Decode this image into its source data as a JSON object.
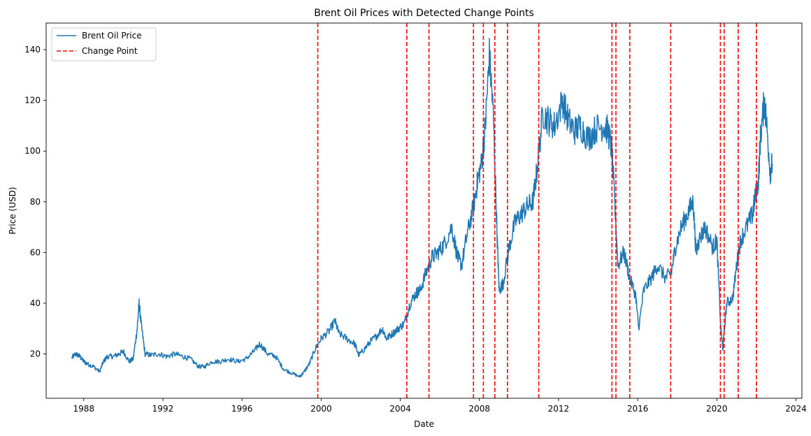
{
  "chart_data": {
    "type": "line",
    "title": "Brent Oil Prices with Detected Change Points",
    "xlabel": "Date",
    "ylabel": "Price (USD)",
    "xlim": [
      1986.1,
      2024.3
    ],
    "ylim": [
      2.5,
      150.5
    ],
    "xticks": [
      1988,
      1992,
      1996,
      2000,
      2004,
      2008,
      2012,
      2016,
      2020,
      2024
    ],
    "yticks": [
      20,
      40,
      60,
      80,
      100,
      120,
      140
    ],
    "grid": false,
    "legend_position": "top-left",
    "series": [
      {
        "name": "Brent Oil Price",
        "color": "#1f77b4",
        "x": [
          1987.4,
          1987.6,
          1987.8,
          1988.0,
          1988.2,
          1988.5,
          1988.8,
          1989.0,
          1989.2,
          1989.5,
          1989.8,
          1990.0,
          1990.3,
          1990.5,
          1990.7,
          1990.8,
          1990.9,
          1991.1,
          1991.4,
          1991.8,
          1992.2,
          1992.6,
          1993.0,
          1993.4,
          1993.8,
          1994.1,
          1994.5,
          1994.9,
          1995.3,
          1995.8,
          1996.2,
          1996.6,
          1996.9,
          1997.3,
          1997.7,
          1998.1,
          1998.5,
          1998.9,
          1999.1,
          1999.4,
          1999.7,
          2000.0,
          2000.4,
          2000.7,
          2000.9,
          2001.3,
          2001.7,
          2001.9,
          2002.2,
          2002.5,
          2002.8,
          2003.1,
          2003.3,
          2003.6,
          2003.9,
          2004.2,
          2004.5,
          2004.8,
          2005.0,
          2005.3,
          2005.6,
          2005.9,
          2006.2,
          2006.6,
          2006.9,
          2007.1,
          2007.4,
          2007.7,
          2007.9,
          2008.1,
          2008.3,
          2008.5,
          2008.7,
          2008.9,
          2009.0,
          2009.2,
          2009.5,
          2009.8,
          2010.1,
          2010.4,
          2010.7,
          2010.9,
          2011.2,
          2011.5,
          2011.8,
          2012.2,
          2012.5,
          2012.8,
          2013.1,
          2013.5,
          2013.9,
          2014.3,
          2014.5,
          2014.7,
          2014.9,
          2015.0,
          2015.3,
          2015.6,
          2015.9,
          2016.05,
          2016.3,
          2016.7,
          2017.0,
          2017.4,
          2017.7,
          2017.9,
          2018.2,
          2018.5,
          2018.8,
          2018.95,
          2019.1,
          2019.4,
          2019.8,
          2020.0,
          2020.2,
          2020.3,
          2020.5,
          2020.8,
          2021.0,
          2021.2,
          2021.5,
          2021.8,
          2021.9,
          2022.1,
          2022.2,
          2022.4,
          2022.5,
          2022.7,
          2022.8
        ],
        "y": [
          18.5,
          20,
          19,
          17,
          16,
          15,
          13,
          17,
          19,
          19,
          20,
          21,
          17,
          18,
          30,
          40,
          32,
          20,
          19.5,
          20,
          19,
          20,
          19,
          18,
          15,
          15,
          17,
          17,
          18,
          17,
          18,
          21,
          24,
          20,
          19,
          14,
          12.5,
          11,
          12.5,
          16,
          22,
          26,
          29,
          33,
          28,
          26,
          24,
          19.5,
          22,
          25,
          27,
          30,
          26,
          28,
          30,
          32,
          40,
          44,
          45,
          52,
          58,
          60,
          63,
          70,
          58,
          55,
          68,
          78,
          88,
          95,
          110,
          138,
          115,
          65,
          45,
          48,
          62,
          72,
          75,
          78,
          80,
          92,
          115,
          112,
          110,
          120,
          112,
          108,
          110,
          105,
          109,
          110,
          108,
          100,
          70,
          55,
          60,
          50,
          43,
          30,
          45,
          50,
          55,
          50,
          52,
          62,
          70,
          75,
          80,
          60,
          65,
          70,
          62,
          65,
          30,
          22,
          40,
          42,
          55,
          65,
          70,
          75,
          80,
          88,
          105,
          120,
          112,
          92,
          95
        ],
        "note_values_approximate": "read visually from chart"
      }
    ],
    "change_points": {
      "name": "Change Point",
      "color": "#ff0000",
      "x": [
        1999.83,
        2004.33,
        2005.45,
        2007.7,
        2008.2,
        2008.78,
        2009.42,
        2011.0,
        2014.7,
        2014.9,
        2015.6,
        2017.67,
        2020.18,
        2020.37,
        2021.08,
        2022.0
      ]
    }
  }
}
